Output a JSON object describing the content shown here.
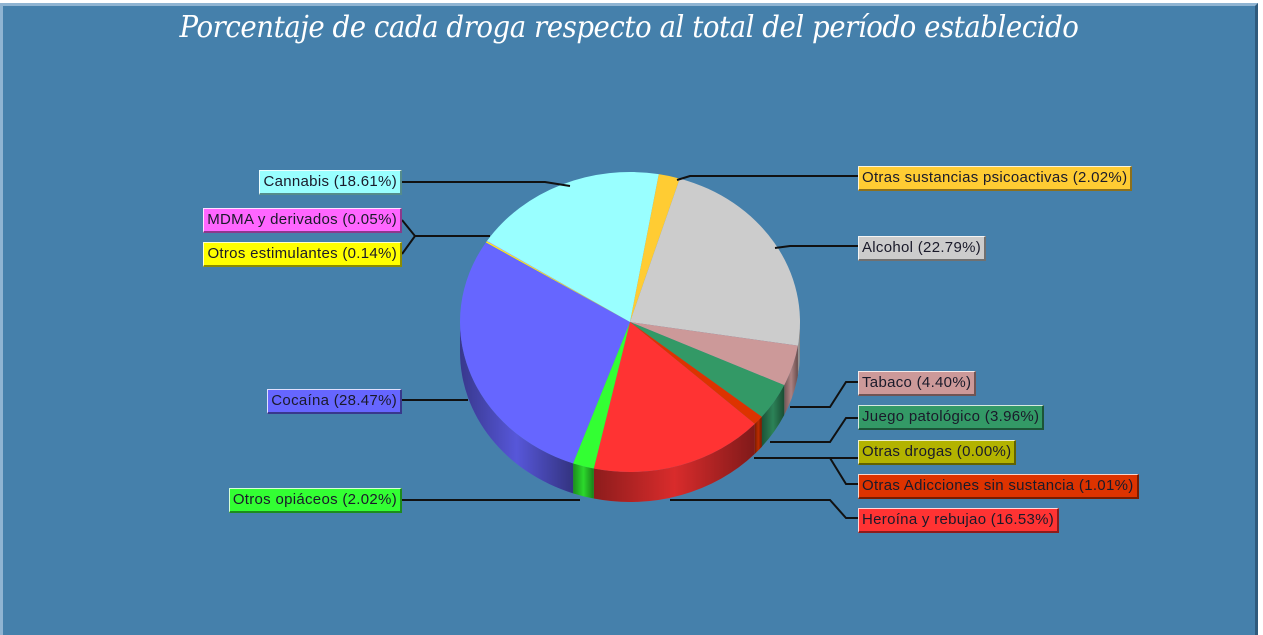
{
  "chart_data": {
    "type": "pie",
    "title": "Porcentaje de cada droga respecto al total del período establecido",
    "legend_position": "callout labels",
    "slices": [
      {
        "label": "Otras sustancias psicoactivas",
        "value": 2.02,
        "color": "#ffcc33"
      },
      {
        "label": "Alcohol",
        "value": 22.79,
        "color": "#cccccc"
      },
      {
        "label": "Tabaco",
        "value": 4.4,
        "color": "#cc9999"
      },
      {
        "label": "Juego patológico",
        "value": 3.96,
        "color": "#339966"
      },
      {
        "label": "Otras drogas",
        "value": 0.0,
        "color": "#b3b300"
      },
      {
        "label": "Otras Adicciones sin sustancia",
        "value": 1.01,
        "color": "#dd3300"
      },
      {
        "label": "Heroína y rebujao",
        "value": 16.53,
        "color": "#ff3333"
      },
      {
        "label": "Otros opiáceos",
        "value": 2.02,
        "color": "#33ff33"
      },
      {
        "label": "Cocaína",
        "value": 28.47,
        "color": "#6666ff"
      },
      {
        "label": "Otros estimulantes",
        "value": 0.14,
        "color": "#ffff00"
      },
      {
        "label": "MDMA y derivados",
        "value": 0.05,
        "color": "#ff66ff"
      },
      {
        "label": "Cannabis",
        "value": 18.61,
        "color": "#99ffff"
      }
    ]
  },
  "labels": {
    "otras_sustancias": "Otras sustancias psicoactivas (2.02%)",
    "alcohol": "Alcohol (22.79%)",
    "tabaco": "Tabaco (4.40%)",
    "juego": "Juego patológico (3.96%)",
    "otras_drogas": "Otras drogas (0.00%)",
    "otras_adicciones": "Otras Adicciones sin sustancia (1.01%)",
    "heroina": "Heroína y rebujao (16.53%)",
    "opiaceos": "Otros opiáceos (2.02%)",
    "cocaina": "Cocaína (28.47%)",
    "estimulantes": "Otros estimulantes (0.14%)",
    "mdma": "MDMA y derivados (0.05%)",
    "cannabis": "Cannabis (18.61%)"
  },
  "colors": {
    "background": "#4580ab",
    "title": "#ffffff"
  }
}
